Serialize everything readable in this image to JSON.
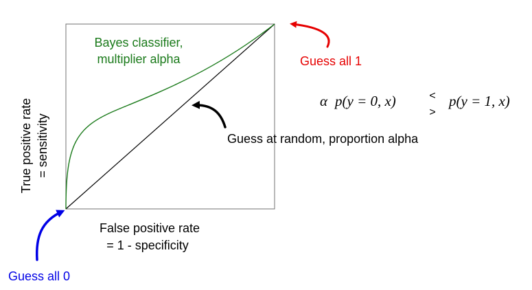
{
  "curve_label": {
    "line1": "Bayes classifier,",
    "line2": "multiplier alpha"
  },
  "axes": {
    "y_label_line1": "True positive rate",
    "y_label_line2": "= sensitivity",
    "x_label_line1": "False positive rate",
    "x_label_line2": "= 1 - specificity"
  },
  "annotations": {
    "guess_all_1": "Guess all 1",
    "guess_all_0": "Guess all 0",
    "guess_random": "Guess at random, proportion alpha"
  },
  "formula": {
    "alpha": "α",
    "left": "p(y = 0, x)",
    "right": "p(y = 1, x)",
    "less": "<",
    "greater": ">"
  },
  "colors": {
    "bayes_curve": "#1a7a1a",
    "diagonal": "#000000",
    "guess_all_1": "#e60000",
    "guess_all_0": "#0000e6",
    "guess_random_arrow": "#000000",
    "frame": "#707070"
  }
}
